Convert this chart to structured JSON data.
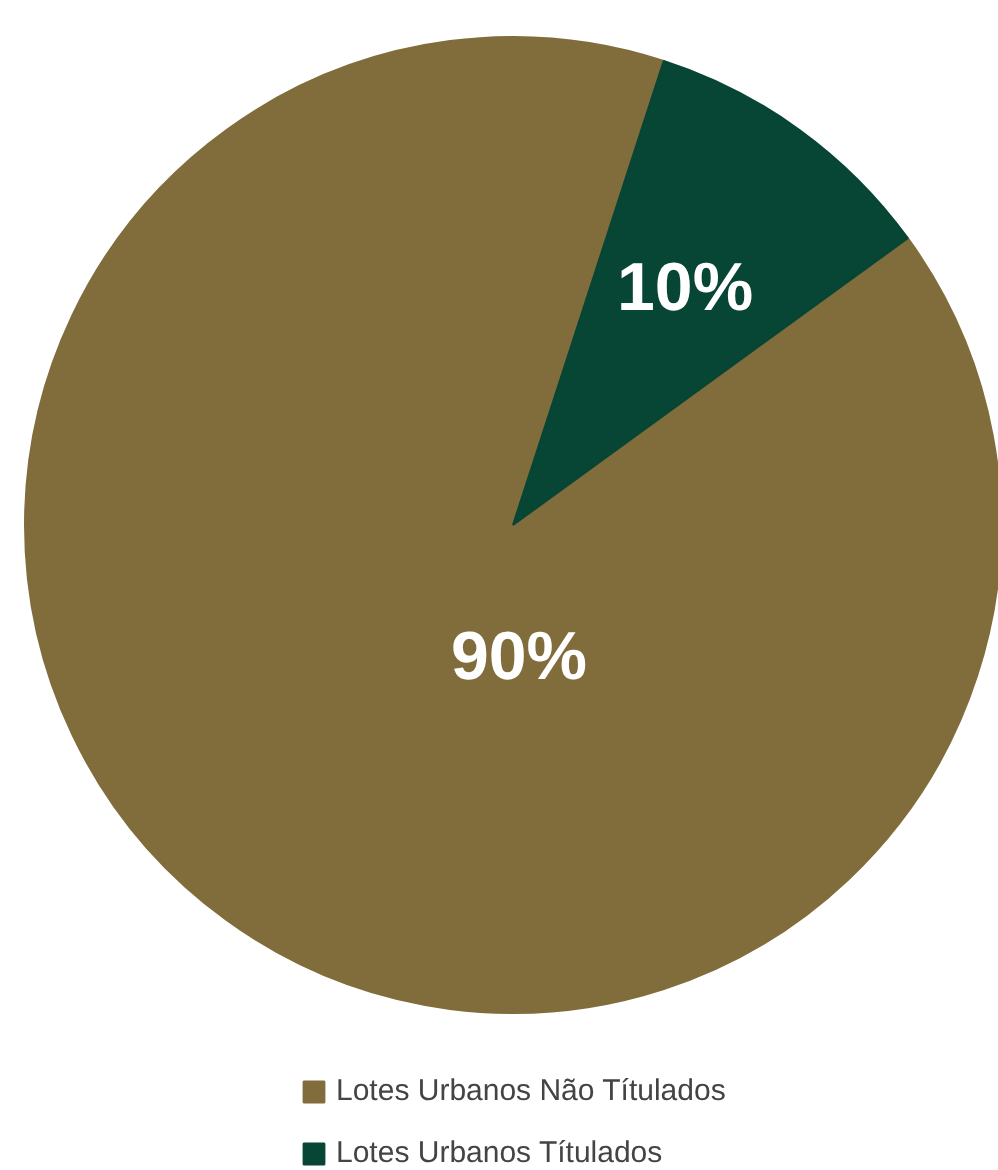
{
  "chart_data": {
    "type": "pie",
    "categories": [
      "Lotes Urbanos Não Títulados",
      "Lotes Urbanos Títulados"
    ],
    "values": [
      90,
      10
    ],
    "colors": [
      "#816d3b",
      "#074535"
    ],
    "value_labels": [
      "90%",
      "10%"
    ],
    "legend": "bottom"
  }
}
